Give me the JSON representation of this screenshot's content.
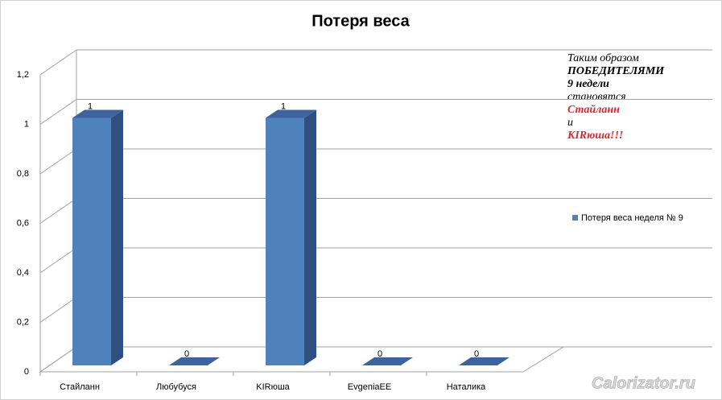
{
  "chart_data": {
    "type": "bar3d",
    "title": "Потеря веса",
    "categories": [
      "Стайланн",
      "Любубуся",
      "KIRюша",
      "EvgeniaEE",
      "Наталика"
    ],
    "series": [
      {
        "name": "Потеря веса неделя № 9",
        "color": "#4f81bd",
        "values": [
          1,
          0,
          1,
          0,
          0
        ]
      }
    ],
    "ylim": [
      0,
      1.2
    ],
    "yticks": [
      0,
      {
        "value": 0.2,
        "label": "0,2"
      },
      {
        "value": 0.4,
        "label": "0,4"
      },
      {
        "value": 0.6,
        "label": "0,6"
      },
      {
        "value": 0.8,
        "label": "0,8"
      },
      1,
      {
        "value": 1.2,
        "label": "1,2"
      }
    ],
    "grid": true,
    "legend": "right",
    "annotations": [
      "Таким образом",
      "ПОБЕДИТЕЛЯМИ",
      "9 недели",
      "становятся",
      "Стайланн",
      "и",
      "KIRюша!!!"
    ]
  },
  "watermark": "Calorizator.ru"
}
